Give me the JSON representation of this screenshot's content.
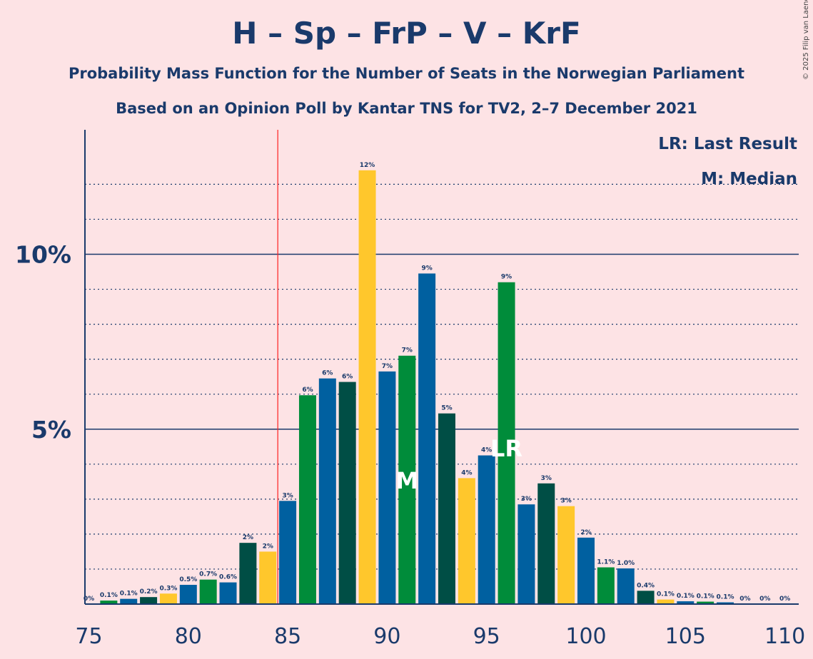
{
  "title": "H – Sp – FrP – V – KrF",
  "subtitle": "Probability Mass Function for the Number of Seats in the Norwegian Parliament",
  "subtitle2": "Based on an Opinion Poll by Kantar TNS for TV2, 2–7 December 2021",
  "copyright": "© 2025 Filip van Laenen",
  "chart_data": {
    "type": "bar",
    "x": [
      75,
      76,
      77,
      78,
      79,
      80,
      81,
      82,
      83,
      84,
      85,
      86,
      87,
      88,
      89,
      90,
      91,
      92,
      93,
      94,
      95,
      96,
      97,
      98,
      99,
      100,
      101,
      102,
      103,
      104,
      105,
      106,
      107,
      108,
      109,
      110
    ],
    "values": [
      0,
      0.1,
      0.15,
      0.2,
      0.3,
      0.55,
      0.7,
      0.62,
      1.75,
      1.5,
      2.95,
      5.97,
      6.45,
      6.35,
      12.4,
      6.65,
      7.1,
      9.45,
      5.45,
      3.6,
      4.25,
      9.2,
      2.85,
      3.45,
      2.8,
      1.9,
      1.05,
      1.02,
      0.38,
      0.13,
      0.08,
      0.07,
      0.05,
      0,
      0,
      0
    ],
    "labels": [
      "0%",
      "0.1%",
      "0.1%",
      "0.2%",
      "0.3%",
      "0.5%",
      "0.7%",
      "0.6%",
      "2%",
      "2%",
      "3%",
      "6%",
      "6%",
      "6%",
      "12%",
      "7%",
      "7%",
      "9%",
      "5%",
      "4%",
      "4%",
      "9%",
      "3%",
      "3%",
      "3%",
      "2%",
      "1.1%",
      "1.0%",
      "0.4%",
      "0.1%",
      "0.1%",
      "0.1%",
      "0.1%",
      "0%",
      "0%",
      "0%"
    ],
    "colors": [
      "#0060a0",
      "#008c3a",
      "#0060a0",
      "#004e45",
      "#ffc72c",
      "#0060a0",
      "#008c3a",
      "#0060a0",
      "#004e45",
      "#ffc72c",
      "#0060a0",
      "#008c3a",
      "#0060a0",
      "#004e45",
      "#ffc72c",
      "#0060a0",
      "#008c3a",
      "#0060a0",
      "#004e45",
      "#ffc72c",
      "#0060a0",
      "#008c3a",
      "#0060a0",
      "#004e45",
      "#ffc72c",
      "#0060a0",
      "#008c3a",
      "#0060a0",
      "#004e45",
      "#ffc72c",
      "#0060a0",
      "#008c3a",
      "#0060a0",
      "#004e45",
      "#ffc72c",
      "#0060a0"
    ],
    "x_ticks": [
      75,
      80,
      85,
      90,
      95,
      100,
      105,
      110
    ],
    "y_ticks": [
      {
        "value": 5,
        "label": "5%"
      },
      {
        "value": 10,
        "label": "10%"
      }
    ],
    "ylim": [
      0,
      13.6
    ],
    "xlim": [
      74.6,
      110.5
    ],
    "majority_line": 84.5,
    "median": {
      "seat": 91,
      "label": "M"
    },
    "last_result": {
      "seat": 96,
      "label": "LR"
    },
    "legend": [
      "LR: Last Result",
      "M: Median"
    ],
    "grid": true,
    "text_color": "#1a3a6b",
    "majority_color": "#ff2020",
    "background": "#fde3e5"
  }
}
